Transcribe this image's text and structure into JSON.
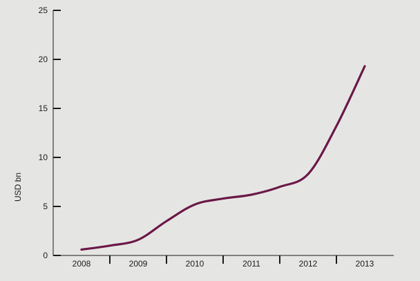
{
  "chart_data": {
    "type": "line",
    "title": "",
    "xlabel": "",
    "ylabel": "USD bn",
    "categories": [
      "2008",
      "2009",
      "2010",
      "2011",
      "2012",
      "2013"
    ],
    "x": [
      2008,
      2008.5,
      2009,
      2009.5,
      2010,
      2010.5,
      2011,
      2011.5,
      2012,
      2012.5,
      2013
    ],
    "series": [
      {
        "values": [
          0.6,
          1.0,
          1.6,
          3.5,
          5.2,
          5.8,
          6.2,
          7.0,
          8.3,
          13.2,
          19.3
        ]
      }
    ],
    "ylim": [
      0,
      25
    ],
    "yticks": [
      0,
      5,
      10,
      15,
      20,
      25
    ],
    "grid": false,
    "legend": "none",
    "colors": {
      "line": "#6b1848",
      "axis": "#1a1a1a",
      "background": "#e5e6e3"
    }
  }
}
